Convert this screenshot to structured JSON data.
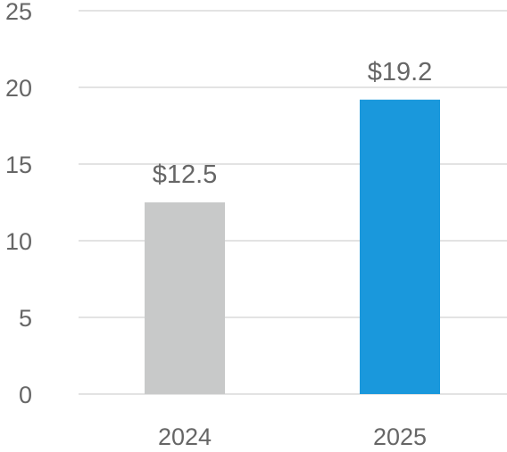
{
  "chart_data": {
    "type": "bar",
    "categories": [
      "2024",
      "2025"
    ],
    "values": [
      12.5,
      19.2
    ],
    "data_labels": [
      "$12.5",
      "$19.2"
    ],
    "colors": [
      "#c8c9c9",
      "#1a98dc"
    ],
    "ylim": [
      0,
      25
    ],
    "yticks": [
      0,
      5,
      10,
      15,
      20,
      25
    ],
    "ytick_labels": [
      "0",
      "5",
      "10",
      "15",
      "20",
      "25"
    ],
    "grid": true,
    "gridline_color": "#e3e3e3",
    "legend": "none",
    "title": "",
    "xlabel": "",
    "ylabel": ""
  }
}
